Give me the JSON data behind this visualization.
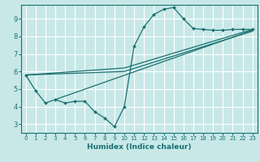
{
  "xlabel": "Humidex (Indice chaleur)",
  "bg_color": "#c8e8e8",
  "grid_color": "#ffffff",
  "line_color": "#1a7070",
  "marker_color": "#1a7070",
  "xlim": [
    -0.5,
    23.5
  ],
  "ylim": [
    2.5,
    9.8
  ],
  "xticks": [
    0,
    1,
    2,
    3,
    4,
    5,
    6,
    7,
    8,
    9,
    10,
    11,
    12,
    13,
    14,
    15,
    16,
    17,
    18,
    19,
    20,
    21,
    22,
    23
  ],
  "yticks": [
    3,
    4,
    5,
    6,
    7,
    8,
    9
  ],
  "line1_x": [
    0,
    1,
    2,
    3,
    4,
    5,
    6,
    7,
    8,
    9,
    10,
    11,
    12,
    13,
    14,
    15,
    16,
    17,
    18,
    19,
    20,
    21,
    22,
    23
  ],
  "line1_y": [
    5.8,
    4.9,
    4.2,
    4.4,
    4.2,
    4.3,
    4.3,
    3.7,
    3.35,
    2.85,
    4.0,
    7.45,
    8.55,
    9.25,
    9.55,
    9.65,
    9.0,
    8.45,
    8.4,
    8.35,
    8.35,
    8.4,
    8.4,
    8.4
  ],
  "line2_x": [
    0,
    10,
    23
  ],
  "line2_y": [
    5.8,
    6.0,
    8.3
  ],
  "line3_x": [
    0,
    10,
    23
  ],
  "line3_y": [
    5.8,
    6.2,
    8.4
  ],
  "line4_x": [
    3,
    23
  ],
  "line4_y": [
    4.4,
    8.35
  ]
}
